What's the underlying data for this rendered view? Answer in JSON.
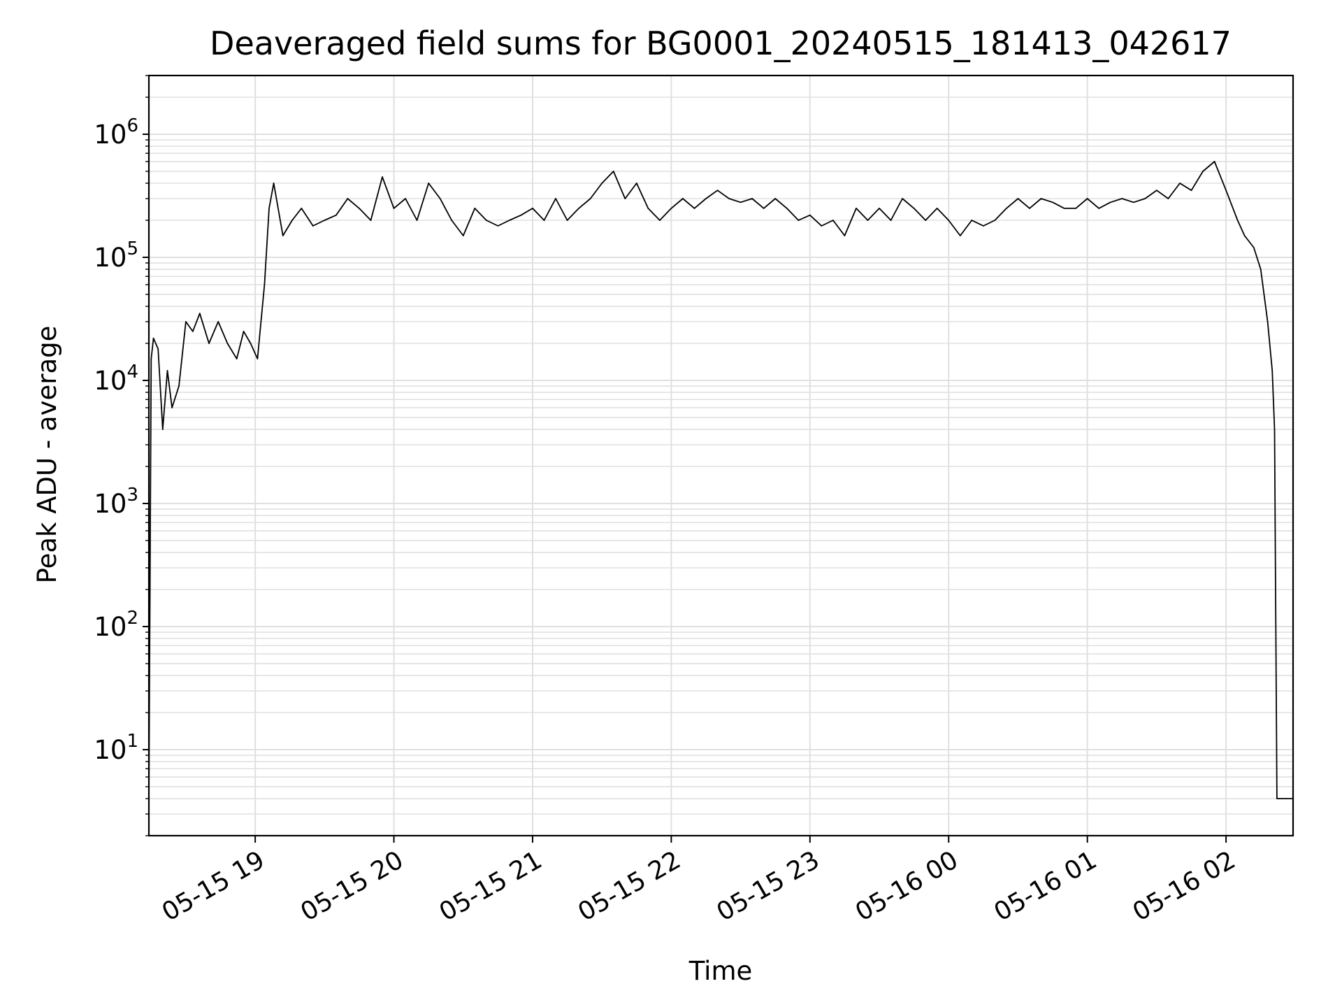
{
  "chart_data": {
    "type": "line",
    "title": "Deaveraged field sums for BG0001_20240515_181413_042617",
    "xlabel": "Time",
    "ylabel": "Peak ADU - average",
    "x_ticks": [
      "05-15 19",
      "05-15 20",
      "05-15 21",
      "05-15 22",
      "05-15 23",
      "05-16 00",
      "05-16 01",
      "05-16 02"
    ],
    "y_ticks": [
      {
        "base": "10",
        "exp": "1",
        "value": 10
      },
      {
        "base": "10",
        "exp": "2",
        "value": 100
      },
      {
        "base": "10",
        "exp": "3",
        "value": 1000
      },
      {
        "base": "10",
        "exp": "4",
        "value": 10000
      },
      {
        "base": "10",
        "exp": "5",
        "value": 100000
      },
      {
        "base": "10",
        "exp": "6",
        "value": 1000000
      }
    ],
    "xlim": [
      "2024-05-15T18:14",
      "2024-05-16T02:29"
    ],
    "ylim": [
      2,
      3000000
    ],
    "y_scale": "log",
    "grid": true,
    "line_color": "#000000",
    "grid_color": "#e0e0e0",
    "series": [
      {
        "x": [
          "2024-05-15T18:14",
          "2024-05-15T18:15",
          "2024-05-15T18:16",
          "2024-05-15T18:18",
          "2024-05-15T18:20",
          "2024-05-15T18:22",
          "2024-05-15T18:24",
          "2024-05-15T18:27",
          "2024-05-15T18:30",
          "2024-05-15T18:33",
          "2024-05-15T18:36",
          "2024-05-15T18:40",
          "2024-05-15T18:44",
          "2024-05-15T18:48",
          "2024-05-15T18:52",
          "2024-05-15T18:55",
          "2024-05-15T18:58",
          "2024-05-15T19:01",
          "2024-05-15T19:04",
          "2024-05-15T19:06",
          "2024-05-15T19:08",
          "2024-05-15T19:12",
          "2024-05-15T19:16",
          "2024-05-15T19:20",
          "2024-05-15T19:25",
          "2024-05-15T19:30",
          "2024-05-15T19:35",
          "2024-05-15T19:40",
          "2024-05-15T19:45",
          "2024-05-15T19:50",
          "2024-05-15T19:55",
          "2024-05-15T20:00",
          "2024-05-15T20:05",
          "2024-05-15T20:10",
          "2024-05-15T20:15",
          "2024-05-15T20:20",
          "2024-05-15T20:25",
          "2024-05-15T20:30",
          "2024-05-15T20:35",
          "2024-05-15T20:40",
          "2024-05-15T20:45",
          "2024-05-15T20:50",
          "2024-05-15T20:55",
          "2024-05-15T21:00",
          "2024-05-15T21:05",
          "2024-05-15T21:10",
          "2024-05-15T21:15",
          "2024-05-15T21:20",
          "2024-05-15T21:25",
          "2024-05-15T21:30",
          "2024-05-15T21:35",
          "2024-05-15T21:40",
          "2024-05-15T21:45",
          "2024-05-15T21:50",
          "2024-05-15T21:55",
          "2024-05-15T22:00",
          "2024-05-15T22:05",
          "2024-05-15T22:10",
          "2024-05-15T22:15",
          "2024-05-15T22:20",
          "2024-05-15T22:25",
          "2024-05-15T22:30",
          "2024-05-15T22:35",
          "2024-05-15T22:40",
          "2024-05-15T22:45",
          "2024-05-15T22:50",
          "2024-05-15T22:55",
          "2024-05-15T23:00",
          "2024-05-15T23:05",
          "2024-05-15T23:10",
          "2024-05-15T23:15",
          "2024-05-15T23:20",
          "2024-05-15T23:25",
          "2024-05-15T23:30",
          "2024-05-15T23:35",
          "2024-05-15T23:40",
          "2024-05-15T23:45",
          "2024-05-15T23:50",
          "2024-05-15T23:55",
          "2024-05-16T00:00",
          "2024-05-16T00:05",
          "2024-05-16T00:10",
          "2024-05-16T00:15",
          "2024-05-16T00:20",
          "2024-05-16T00:25",
          "2024-05-16T00:30",
          "2024-05-16T00:35",
          "2024-05-16T00:40",
          "2024-05-16T00:45",
          "2024-05-16T00:50",
          "2024-05-16T00:55",
          "2024-05-16T01:00",
          "2024-05-16T01:05",
          "2024-05-16T01:10",
          "2024-05-16T01:15",
          "2024-05-16T01:20",
          "2024-05-16T01:25",
          "2024-05-16T01:30",
          "2024-05-16T01:35",
          "2024-05-16T01:40",
          "2024-05-16T01:45",
          "2024-05-16T01:50",
          "2024-05-16T01:55",
          "2024-05-16T02:00",
          "2024-05-16T02:05",
          "2024-05-16T02:08",
          "2024-05-16T02:12",
          "2024-05-16T02:15",
          "2024-05-16T02:18",
          "2024-05-16T02:20",
          "2024-05-16T02:21",
          "2024-05-16T02:22",
          "2024-05-16T02:23",
          "2024-05-16T02:24",
          "2024-05-16T02:26",
          "2024-05-16T02:29"
        ],
        "y": [
          4,
          15000,
          22000,
          18000,
          4000,
          12000,
          6000,
          9000,
          30000,
          25000,
          35000,
          20000,
          30000,
          20000,
          15000,
          25000,
          20000,
          15000,
          60000,
          250000,
          400000,
          150000,
          200000,
          250000,
          180000,
          200000,
          220000,
          300000,
          250000,
          200000,
          450000,
          250000,
          300000,
          200000,
          400000,
          300000,
          200000,
          150000,
          250000,
          200000,
          180000,
          200000,
          220000,
          250000,
          200000,
          300000,
          200000,
          250000,
          300000,
          400000,
          500000,
          300000,
          400000,
          250000,
          200000,
          250000,
          300000,
          250000,
          300000,
          350000,
          300000,
          280000,
          300000,
          250000,
          300000,
          250000,
          200000,
          220000,
          180000,
          200000,
          150000,
          250000,
          200000,
          250000,
          200000,
          300000,
          250000,
          200000,
          250000,
          200000,
          150000,
          200000,
          180000,
          200000,
          250000,
          300000,
          250000,
          300000,
          280000,
          250000,
          250000,
          300000,
          250000,
          280000,
          300000,
          280000,
          300000,
          350000,
          300000,
          400000,
          350000,
          500000,
          600000,
          350000,
          200000,
          150000,
          120000,
          80000,
          30000,
          12000,
          4000,
          4,
          4,
          4,
          4,
          4
        ]
      }
    ]
  }
}
